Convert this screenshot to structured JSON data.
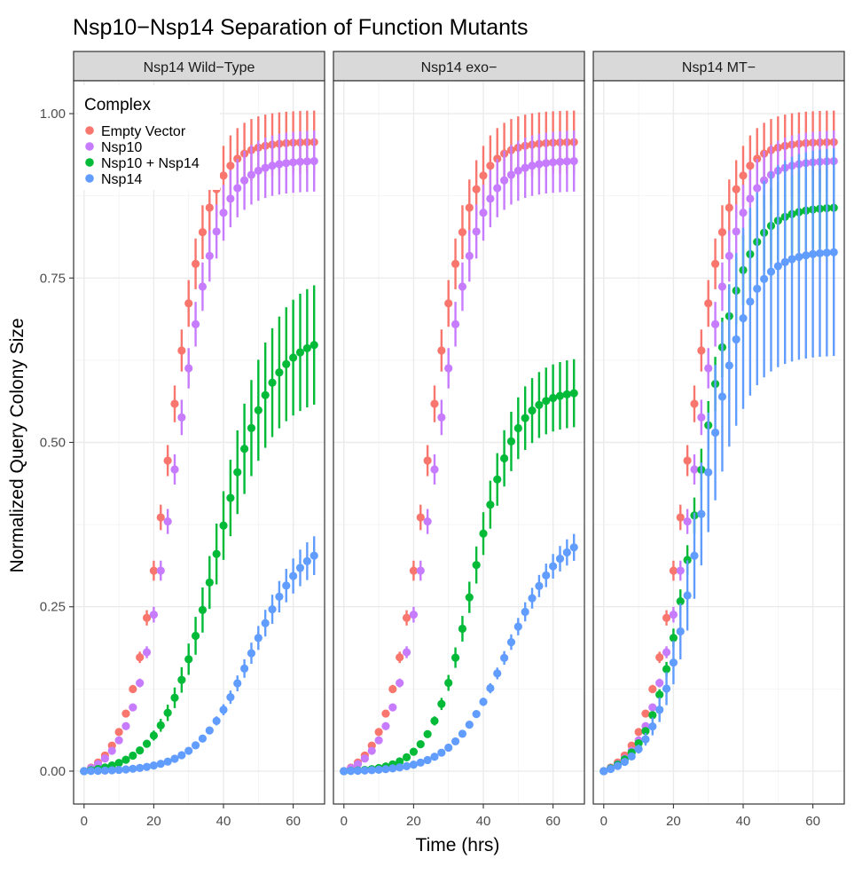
{
  "chart_data": {
    "type": "scatter",
    "title": "Nsp10−Nsp14 Separation of Function Mutants",
    "xlabel": "Time (hrs)",
    "ylabel": "Normalized Query Colony Size",
    "xlim": [
      -3,
      69
    ],
    "ylim": [
      -0.05,
      1.05
    ],
    "x_ticks": [
      0,
      20,
      40,
      60
    ],
    "y_ticks": [
      0.0,
      0.25,
      0.5,
      0.75,
      1.0
    ],
    "x_tick_labels": [
      "0",
      "20",
      "40",
      "60"
    ],
    "y_tick_labels": [
      "0.00",
      "0.25",
      "0.50",
      "0.75",
      "1.00"
    ],
    "grid": true,
    "legend": {
      "title": "Complex",
      "placement": "top-left inside first panel",
      "entries": [
        "Empty Vector",
        "Nsp10",
        "Nsp10 + Nsp14",
        "Nsp14"
      ]
    },
    "time_points": {
      "start": 0,
      "step": 2,
      "count": 34
    },
    "series_style": {
      "Empty Vector": {
        "color": "#F8766D"
      },
      "Nsp10": {
        "color": "#C77CFF"
      },
      "Nsp10 + Nsp14": {
        "color": "#00BA38"
      },
      "Nsp14": {
        "color": "#619CFF"
      }
    },
    "panels": [
      {
        "title": "Nsp14 Wild−Type",
        "series": [
          {
            "name": "Empty Vector",
            "model": "logistic",
            "max": 0.97,
            "midpoint": 24,
            "rate": 0.18,
            "error_frac": 0.05
          },
          {
            "name": "Nsp10",
            "model": "logistic",
            "max": 0.94,
            "midpoint": 26,
            "rate": 0.17,
            "error_frac": 0.05
          },
          {
            "name": "Nsp10 + Nsp14",
            "model": "logistic",
            "max": 0.67,
            "midpoint": 38,
            "rate": 0.13,
            "error_frac": 0.14
          },
          {
            "name": "Nsp14",
            "model": "logistic",
            "max": 0.36,
            "midpoint": 48,
            "rate": 0.13,
            "error_frac": 0.09
          }
        ]
      },
      {
        "title": "Nsp14 exo−",
        "series": [
          {
            "name": "Empty Vector",
            "model": "logistic",
            "max": 0.97,
            "midpoint": 24,
            "rate": 0.18,
            "error_frac": 0.05
          },
          {
            "name": "Nsp10",
            "model": "logistic",
            "max": 0.94,
            "midpoint": 26,
            "rate": 0.17,
            "error_frac": 0.05
          },
          {
            "name": "Nsp10 + Nsp14",
            "model": "logistic",
            "max": 0.58,
            "midpoint": 37,
            "rate": 0.17,
            "error_frac": 0.09
          },
          {
            "name": "Nsp14",
            "model": "logistic",
            "max": 0.37,
            "midpoint": 47,
            "rate": 0.13,
            "error_frac": 0.06
          }
        ]
      },
      {
        "title": "Nsp14 MT−",
        "series": [
          {
            "name": "Empty Vector",
            "model": "logistic",
            "max": 0.97,
            "midpoint": 24,
            "rate": 0.18,
            "error_frac": 0.05
          },
          {
            "name": "Nsp10",
            "model": "logistic",
            "max": 0.94,
            "midpoint": 26,
            "rate": 0.17,
            "error_frac": 0.05
          },
          {
            "name": "Nsp10 + Nsp14",
            "model": "logistic",
            "max": 0.87,
            "midpoint": 27,
            "rate": 0.16,
            "error_frac": 0.07
          },
          {
            "name": "Nsp14",
            "model": "logistic",
            "max": 0.8,
            "midpoint": 28,
            "rate": 0.16,
            "error_frac": 0.2
          }
        ]
      }
    ]
  }
}
